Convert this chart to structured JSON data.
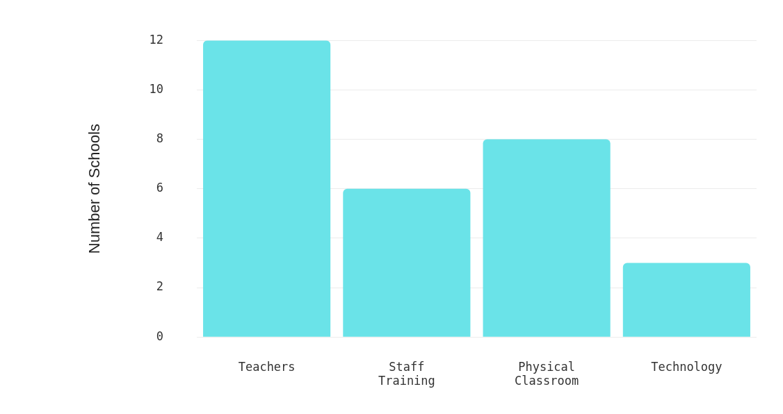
{
  "chart_data": {
    "type": "bar",
    "ylabel": "Number of Schools",
    "categories": [
      "Teachers",
      "Staff Training",
      "Physical Classroom",
      "Technology"
    ],
    "values": [
      12,
      6,
      8,
      3
    ],
    "color": "#6ae3e8",
    "ylim": [
      0,
      12
    ],
    "yticks": [
      0,
      2,
      4,
      6,
      8,
      10,
      12
    ],
    "grid": "y",
    "legend": false
  }
}
